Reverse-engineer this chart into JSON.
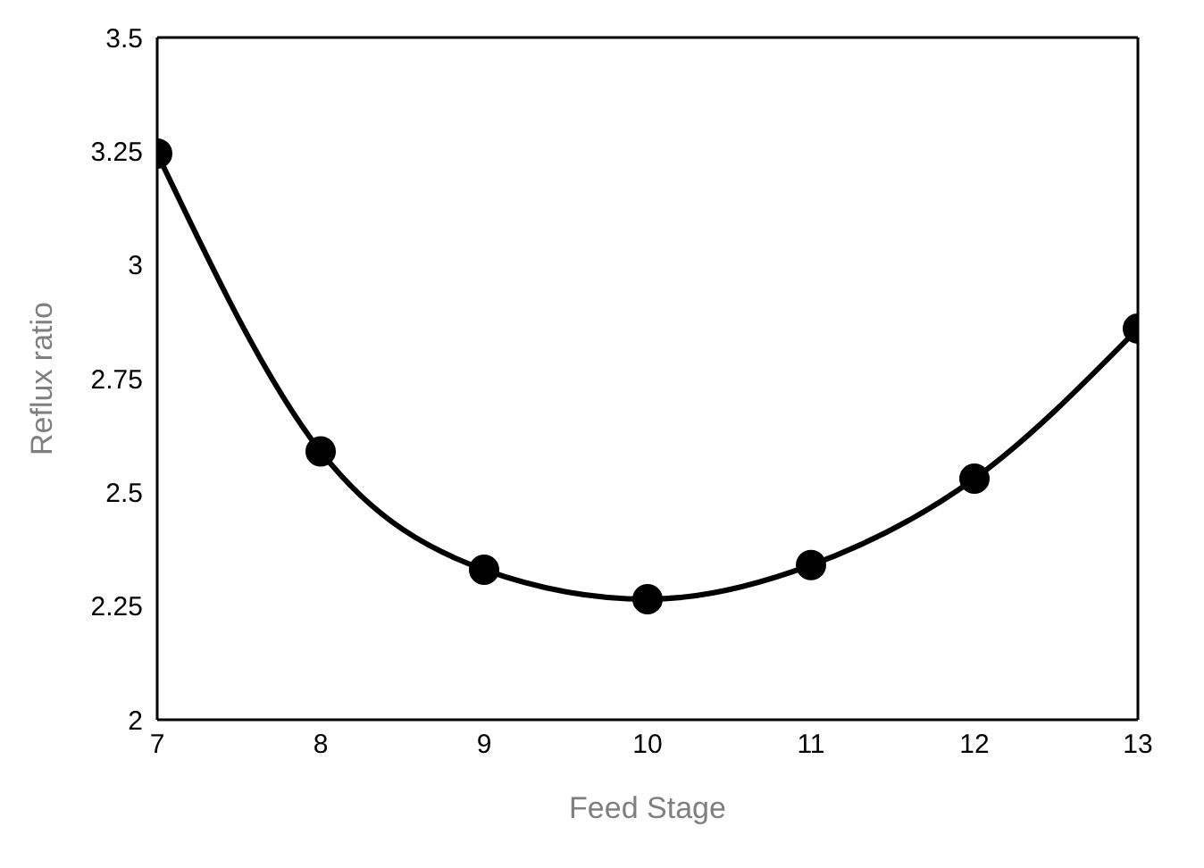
{
  "chart_data": {
    "type": "line",
    "xlabel": "Feed Stage",
    "ylabel": "Reflux ratio",
    "x": [
      7,
      8,
      9,
      10,
      11,
      12,
      13
    ],
    "series": [
      {
        "color": "#000000",
        "values": [
          3.245,
          2.59,
          2.33,
          2.265,
          2.34,
          2.53,
          2.86
        ]
      }
    ],
    "xlim": [
      7,
      13
    ],
    "xticks": [
      7,
      8,
      9,
      10,
      11,
      12,
      13
    ],
    "ylim": [
      2,
      3.5
    ],
    "yticks": [
      2,
      2.25,
      2.5,
      2.75,
      3,
      3.25,
      3.5
    ],
    "marker": "circle",
    "line_style": "solid"
  }
}
